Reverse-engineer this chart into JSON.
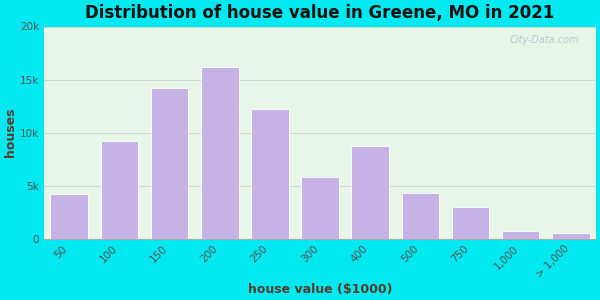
{
  "title": "Distribution of house value in Greene, MO in 2021",
  "xlabel": "house value ($1000)",
  "ylabel": "houses",
  "bar_labels": [
    "50",
    "100",
    "150",
    "200",
    "250",
    "300",
    "400",
    "500",
    "750",
    "1,000",
    "> 1,000"
  ],
  "bar_values": [
    4200,
    9200,
    14200,
    16200,
    12200,
    5800,
    8700,
    4300,
    3000,
    700,
    500
  ],
  "bar_color": "#c5b3e6",
  "bar_edge_color": "#ffffff",
  "ylim": [
    0,
    20000
  ],
  "yticks": [
    0,
    5000,
    10000,
    15000,
    20000
  ],
  "ytick_labels": [
    "0",
    "5k",
    "10k",
    "15k",
    "20k"
  ],
  "bg_outer": "#00e8f0",
  "bg_plot": "#e8f5e9",
  "title_fontsize": 12,
  "axis_label_fontsize": 9,
  "tick_fontsize": 7.5,
  "tick_color": "#555555",
  "label_color": "#5a3a2a",
  "title_color": "#111111",
  "watermark": "City-Data.com",
  "grid_color": "#d0d8c0",
  "bar_width": 0.75
}
